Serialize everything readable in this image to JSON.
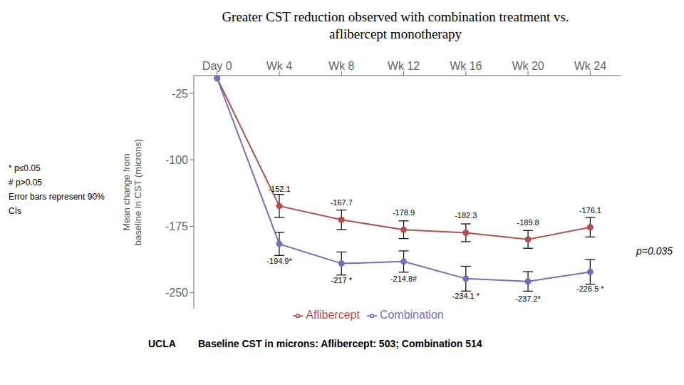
{
  "chart_data": {
    "type": "line",
    "title": "Greater CST reduction observed with combination treatment vs.\naflibercept monotherapy",
    "y_label": "Mean change from\nbaseline in CST (microns)",
    "x": [
      0,
      4,
      8,
      12,
      16,
      20,
      24
    ],
    "xlim": [
      -1.5,
      26
    ],
    "xticks": [
      {
        "value": 0,
        "label": "Day 0"
      },
      {
        "value": 4,
        "label": "Wk 4"
      },
      {
        "value": 8,
        "label": "Wk 8"
      },
      {
        "value": 12,
        "label": "Wk 12"
      },
      {
        "value": 16,
        "label": "Wk 16"
      },
      {
        "value": 20,
        "label": "Wk 20"
      },
      {
        "value": 24,
        "label": "Wk 24"
      }
    ],
    "ylim": [
      -268,
      -5
    ],
    "yticks": [
      -250,
      -175,
      -100,
      -25
    ],
    "series": [
      {
        "name": "Aflibercept",
        "color": "#b05050",
        "values": [
          -8,
          -152.1,
          -167.7,
          -178.9,
          -182.3,
          -189.8,
          -176.1
        ],
        "errors": [
          null,
          13,
          11,
          10,
          10,
          10,
          11
        ],
        "value_labels": [
          null,
          "-152.1",
          "-167.7",
          "-178.9",
          "-182.3",
          "-189.8",
          "-176.1"
        ]
      },
      {
        "name": "Combination",
        "color": "#7070b8",
        "values": [
          -8,
          -194.9,
          -217.0,
          -214.8,
          -234.1,
          -237.2,
          -226.5
        ],
        "errors": [
          null,
          13,
          13,
          12,
          14,
          11,
          14
        ],
        "value_labels": [
          null,
          "-194.9*",
          "-217 *",
          "-214.8#",
          "-234.1 *",
          "-237.2*",
          "-226.5 *"
        ]
      }
    ],
    "data_labels": true,
    "marker": "circle",
    "legend": "bottom",
    "grid": false,
    "annotations": [
      "p=0.035"
    ],
    "notes": [
      "* p≤0.05",
      "# p>0.05",
      "Error bars represent 90% CIs"
    ],
    "footer": [
      "UCLA",
      "Baseline CST in microns: Aflibercept: 503; Combination 514"
    ]
  }
}
